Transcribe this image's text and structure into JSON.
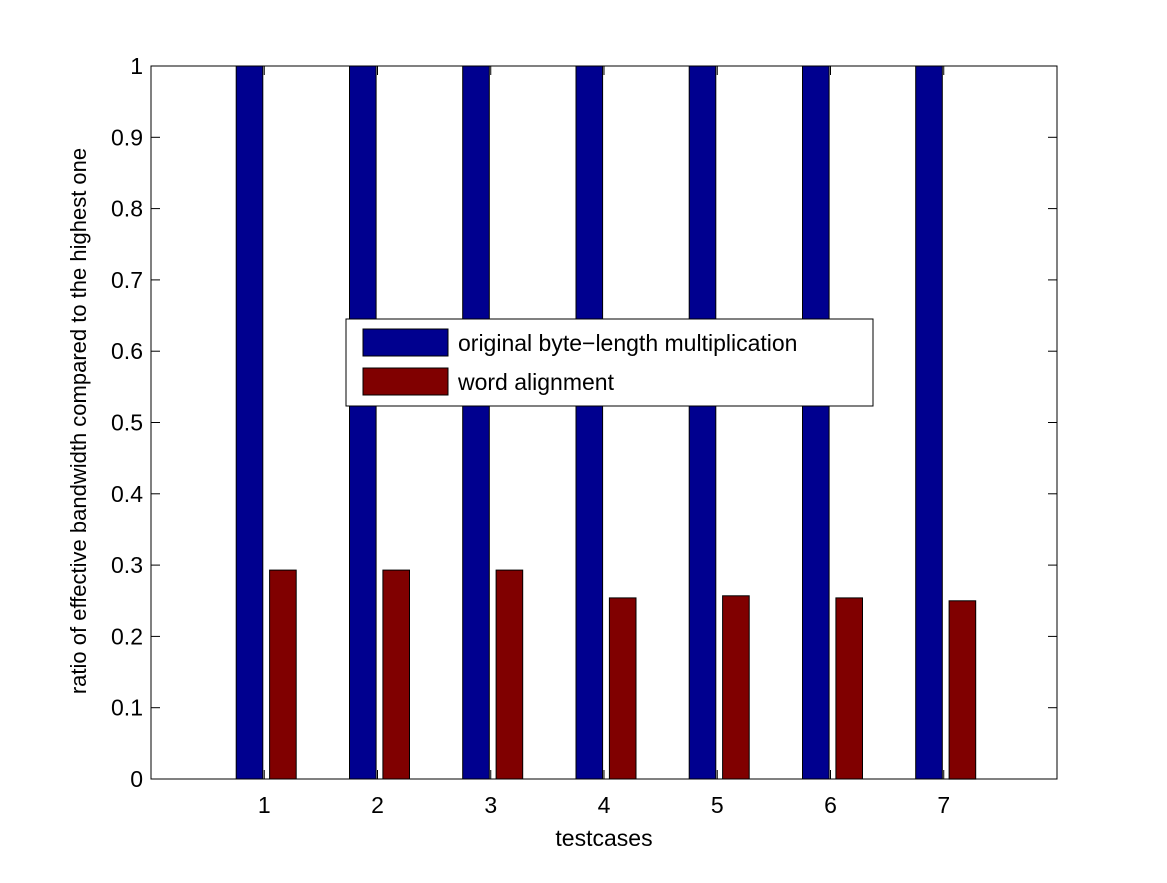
{
  "chart_data": {
    "type": "bar",
    "xlabel": "testcases",
    "ylabel": "ratio of effective bandwidth compared to the highest one",
    "categories": [
      "1",
      "2",
      "3",
      "4",
      "5",
      "6",
      "7"
    ],
    "xlim": [
      0,
      8
    ],
    "ylim": [
      0,
      1
    ],
    "yticks": [
      "0",
      "0.1",
      "0.2",
      "0.3",
      "0.4",
      "0.5",
      "0.6",
      "0.7",
      "0.8",
      "0.9",
      "1"
    ],
    "grid": false,
    "legend_position": "center",
    "series": [
      {
        "name": "original byte−length multiplication",
        "color": "#00008F",
        "values": [
          1,
          1,
          1,
          1,
          1,
          1,
          1
        ]
      },
      {
        "name": "word alignment",
        "color": "#800000",
        "values": [
          0.293,
          0.293,
          0.293,
          0.254,
          0.257,
          0.254,
          0.25
        ]
      }
    ]
  }
}
